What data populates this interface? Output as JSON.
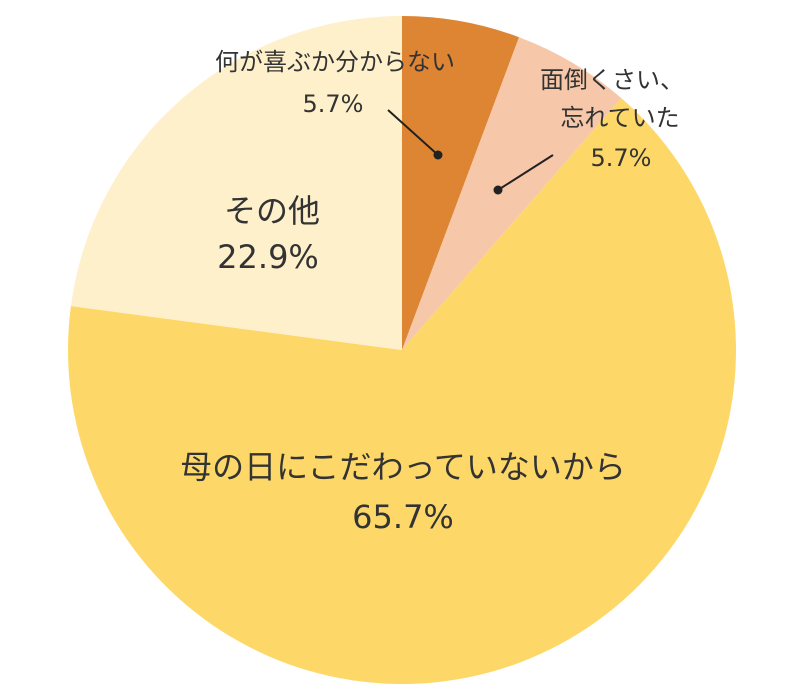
{
  "chart_data": {
    "type": "pie",
    "slices": [
      {
        "label": "何が喜ぶか分からない",
        "value_label": "5.7%",
        "value": 5.7,
        "color": "#DE8533"
      },
      {
        "label": "面倒くさい、忘れていた",
        "label_lines": [
          "面倒くさい、",
          "忘れていた"
        ],
        "value_label": "5.7%",
        "value": 5.7,
        "color": "#F6C7A8"
      },
      {
        "label": "母の日にこだわっていないから",
        "value_label": "65.7%",
        "value": 65.7,
        "color": "#FDD869"
      },
      {
        "label": "その他",
        "value_label": "22.9%",
        "value": 22.9,
        "color": "#FEF0CB"
      }
    ],
    "start_angle": "12 o'clock",
    "direction": "clockwise",
    "legend": "none"
  }
}
